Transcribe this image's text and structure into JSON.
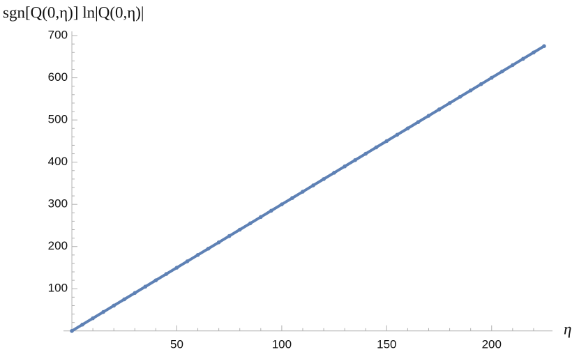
{
  "chart_data": {
    "type": "line",
    "ylabel": "sgn[Q(0,η)] ln|Q(0,η)|",
    "xlabel": "η",
    "x": [
      0,
      5,
      10,
      15,
      20,
      25,
      30,
      35,
      40,
      45,
      50,
      55,
      60,
      65,
      70,
      75,
      80,
      85,
      90,
      95,
      100,
      105,
      110,
      115,
      120,
      125,
      130,
      135,
      140,
      145,
      150,
      155,
      160,
      165,
      170,
      175,
      180,
      185,
      190,
      195,
      200,
      205,
      210,
      215,
      220,
      225
    ],
    "values": [
      0,
      15,
      30,
      45,
      60,
      75,
      90,
      105,
      120,
      135,
      150,
      165,
      180,
      195,
      210,
      225,
      240,
      255,
      270,
      285,
      300,
      315,
      330,
      345,
      360,
      375,
      390,
      405,
      420,
      435,
      450,
      465,
      480,
      495,
      510,
      525,
      540,
      555,
      570,
      585,
      600,
      615,
      630,
      645,
      660,
      675
    ],
    "color": "#5e81b5",
    "xlim": [
      -4,
      229
    ],
    "ylim": [
      -2,
      710
    ],
    "xticks": [
      50,
      100,
      150,
      200
    ],
    "yticks": [
      100,
      200,
      300,
      400,
      500,
      600,
      700
    ],
    "xminorticks": [
      10,
      20,
      30,
      40,
      60,
      70,
      80,
      90,
      110,
      120,
      130,
      140,
      160,
      170,
      180,
      190,
      210,
      220
    ],
    "yminorticks": [
      20,
      40,
      60,
      80,
      120,
      140,
      160,
      180,
      220,
      240,
      260,
      280,
      320,
      340,
      360,
      380,
      420,
      440,
      460,
      480,
      520,
      540,
      560,
      580,
      620,
      640,
      660,
      680
    ]
  }
}
